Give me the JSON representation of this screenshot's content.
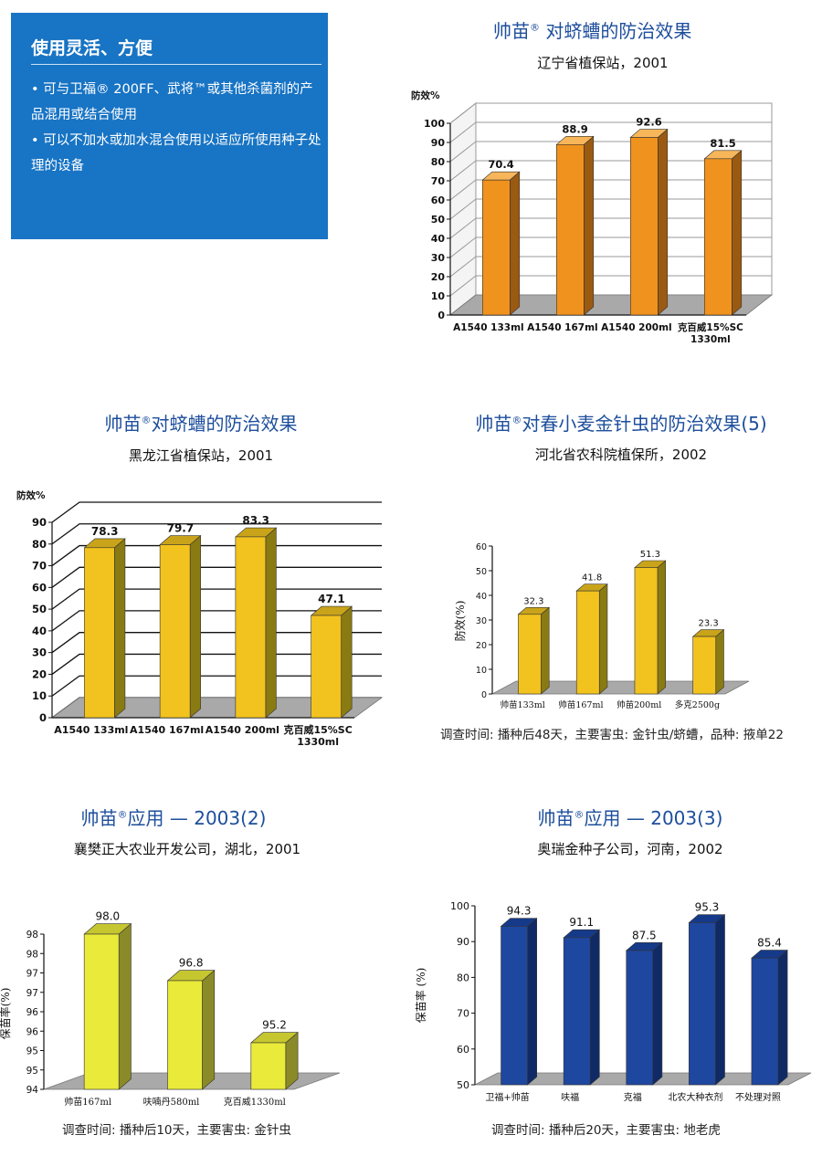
{
  "info_box": {
    "title": "使用灵活、方便",
    "items": [
      "• 可与卫福® 200FF、武将™或其他杀菌剂的产品混用或结合使用",
      "• 可以不加水或加水混合使用以适应所使用种子处理的设备"
    ]
  },
  "charts": [
    {
      "title_main": "帅苗",
      "title_reg": "®",
      "title_rest": " 对蛴螬的防治效果",
      "subtitle": "辽宁省植保站，2001",
      "note": "",
      "colors": {
        "front": "#f0921e",
        "side": "#9a5a12",
        "top": "#f7b65a"
      },
      "chart_data": {
        "type": "bar",
        "ylabel": "防效%",
        "ylim": [
          0,
          100
        ],
        "yticks": [
          0,
          10,
          20,
          30,
          40,
          50,
          60,
          70,
          80,
          90,
          100
        ],
        "grid": true,
        "categories": [
          "A1540 133ml",
          "A1540 167ml",
          "A1540 200ml",
          "克百威15%SC\n1330ml"
        ],
        "values": [
          70.4,
          88.9,
          92.6,
          81.5
        ],
        "value_labels": [
          "70.4",
          "88.9",
          "92.6",
          "81.5"
        ]
      }
    },
    {
      "title_main": "帅苗",
      "title_reg": "®",
      "title_rest": "对蛴螬的防治效果",
      "subtitle": "黑龙江省植保站，2001",
      "note": "",
      "colors": {
        "front": "#f2c21e",
        "side": "#8a7a12",
        "top": "#c9a41a"
      },
      "chart_data": {
        "type": "bar",
        "ylabel": "防效%",
        "ylim": [
          0,
          90
        ],
        "yticks": [
          0,
          10,
          20,
          30,
          40,
          50,
          60,
          70,
          80,
          90
        ],
        "grid": true,
        "categories": [
          "A1540 133ml",
          "A1540 167ml",
          "A1540 200ml",
          "克百威15%SC\n1330ml"
        ],
        "values": [
          78.3,
          79.7,
          83.3,
          47.1
        ],
        "value_labels": [
          "78.3",
          "79.7",
          "83.3",
          "47.1"
        ]
      }
    },
    {
      "title_main": "帅苗",
      "title_reg": "®",
      "title_rest": "对春小麦金针虫的防治效果(5)",
      "subtitle": "河北省农科院植保所，2002",
      "note": "调查时间: 播种后48天，主要害虫: 金针虫/蛴螬，品种: 掖单22",
      "colors": {
        "front": "#f2c21e",
        "side": "#8a7a12",
        "top": "#c9a41a"
      },
      "chart_data": {
        "type": "bar",
        "ylabel": "防效(%)",
        "ylim": [
          0,
          60
        ],
        "yticks": [
          0,
          10,
          20,
          30,
          40,
          50,
          60
        ],
        "grid": false,
        "categories": [
          "帅苗133ml",
          "帅苗167ml",
          "帅苗200ml",
          "多克2500g"
        ],
        "values": [
          32.3,
          41.8,
          51.3,
          23.3
        ],
        "value_labels": [
          "32.3",
          "41.8",
          "51.3",
          "23.3"
        ]
      }
    },
    {
      "title_main": "帅苗",
      "title_reg": "®",
      "title_rest": "应用 — 2003(2)",
      "subtitle": "襄樊正大农业开发公司，湖北，2001",
      "note": "调查时间: 播种后10天，主要害虫: 金针虫",
      "colors": {
        "front": "#eaea3a",
        "side": "#8a8a28",
        "top": "#c6c630"
      },
      "chart_data": {
        "type": "bar",
        "ylabel": "保苗率(%)",
        "ylim": [
          94,
          98
        ],
        "yticks": [
          94,
          94.5,
          95,
          95.5,
          96,
          96.5,
          97,
          97.5,
          98
        ],
        "ytick_labels": [
          "94",
          "95",
          "95",
          "96",
          "96",
          "97",
          "97",
          "98",
          "98"
        ],
        "grid": false,
        "categories": [
          "帅苗167ml",
          "呋喃丹580ml",
          "克百威1330ml"
        ],
        "values": [
          98.0,
          96.8,
          95.2
        ],
        "value_labels": [
          "98.0",
          "96.8",
          "95.2"
        ]
      }
    },
    {
      "title_main": "帅苗",
      "title_reg": "®",
      "title_rest": "应用 — 2003(3)",
      "subtitle": "奥瑞金种子公司，河南，2002",
      "note": "调查时间: 播种后20天，主要害虫: 地老虎",
      "colors": {
        "front": "#1e47a0",
        "side": "#102a66",
        "top": "#163a8a"
      },
      "chart_data": {
        "type": "bar",
        "ylabel": "保苗率 (%)",
        "ylim": [
          50,
          100
        ],
        "yticks": [
          50,
          60,
          70,
          80,
          90,
          100
        ],
        "grid": false,
        "categories": [
          "卫福+帅苗",
          "呋福",
          "克福",
          "北农大种衣剂",
          "不处理对照"
        ],
        "values": [
          94.3,
          91.1,
          87.5,
          95.3,
          85.4
        ],
        "value_labels": [
          "94.3",
          "91.1",
          "87.5",
          "95.3",
          "85.4"
        ]
      }
    }
  ]
}
